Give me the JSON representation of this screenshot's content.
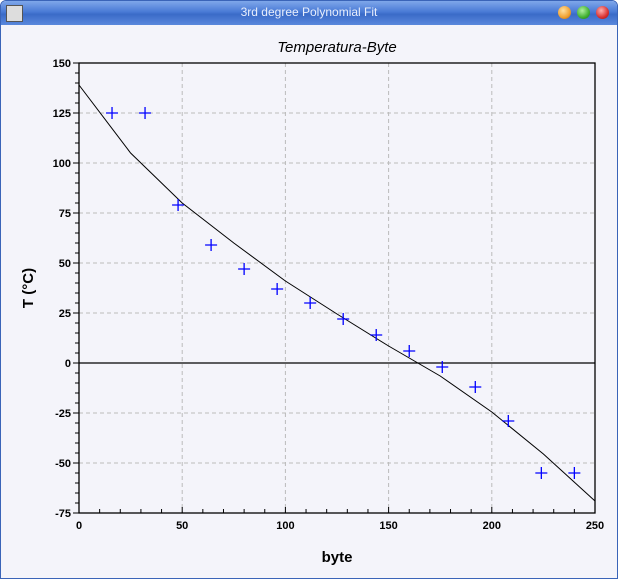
{
  "window": {
    "title": "3rd degree Polynomial Fit",
    "app_icon": "plot-app-icon",
    "controls": [
      "minimize",
      "maximize",
      "close"
    ]
  },
  "colors": {
    "markers": "#0000ff",
    "curve": "#000000",
    "grid": "#bbbbbb",
    "minimize": "#f0a030",
    "maximize": "#40b030",
    "close": "#d83030"
  },
  "chart_data": {
    "type": "scatter",
    "title": "Temperatura-Byte",
    "xlabel": "byte",
    "ylabel": "T (°C)",
    "xlim": [
      0,
      250
    ],
    "ylim": [
      -75,
      150
    ],
    "xticks": [
      0,
      50,
      100,
      150,
      200,
      250
    ],
    "yticks": [
      -75,
      -50,
      -25,
      0,
      25,
      50,
      75,
      100,
      125,
      150
    ],
    "grid": true,
    "zero_line": true,
    "series": [
      {
        "kind": "markers",
        "marker": "plus",
        "color": "#0000ff",
        "x": [
          16,
          32,
          48,
          64,
          80,
          96,
          112,
          128,
          144,
          160,
          176,
          192,
          208,
          224,
          240
        ],
        "y": [
          125,
          125,
          79,
          59,
          47,
          37,
          30,
          22,
          14,
          6,
          -2,
          -12,
          -29,
          -55,
          -55
        ]
      },
      {
        "kind": "line",
        "color": "#000000",
        "x": [
          0,
          25,
          50,
          75,
          100,
          125,
          150,
          175,
          200,
          225,
          250
        ],
        "y": [
          139,
          105,
          80,
          60,
          41,
          24.5,
          8.5,
          -6.5,
          -24.5,
          -45.5,
          -69
        ]
      }
    ]
  }
}
